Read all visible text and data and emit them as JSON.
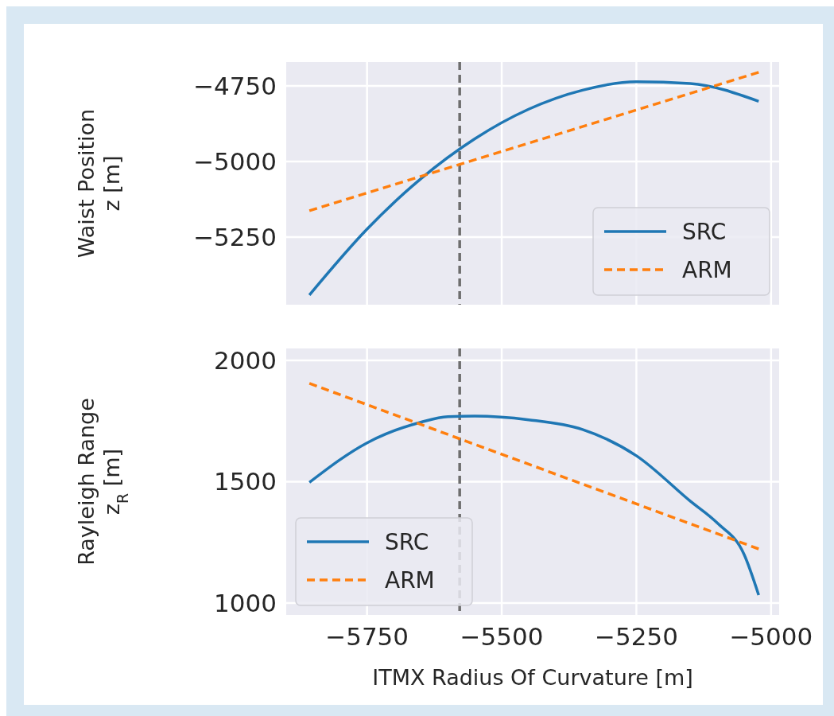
{
  "chart_data": [
    {
      "type": "line",
      "ylabel": "Waist Position\nz [m]",
      "xlim": [
        -5900,
        -4985
      ],
      "ylim": [
        -5474,
        -4671
      ],
      "yticks": [
        {
          "value": -5250,
          "label": "−5250"
        },
        {
          "value": -5000,
          "label": "−5000"
        },
        {
          "value": -4750,
          "label": "−4750"
        }
      ],
      "xticks": [
        -5750,
        -5500,
        -5250,
        -5000
      ],
      "tick_labels": "y",
      "grid": true,
      "legend": "bottom right",
      "series": [
        {
          "name": "SRC",
          "color": "#1f77b4",
          "line_style": "solid",
          "x": [
            -5857,
            -5750,
            -5650,
            -5550,
            -5450,
            -5350,
            -5250,
            -5150,
            -5023
          ],
          "values": [
            -5442,
            -5224,
            -5057,
            -4925,
            -4827,
            -4764,
            -4736,
            -4742,
            -4801
          ]
        },
        {
          "name": "ARM",
          "color": "#ff7f0e",
          "line_style": "dashed",
          "x": [
            -5857,
            -5023
          ],
          "values": [
            -5163,
            -4705
          ]
        }
      ],
      "ref_lines": [
        {
          "axis": "x",
          "value": -5578,
          "color": "#6e6e6e",
          "line_style": "dashed"
        }
      ]
    },
    {
      "type": "line",
      "ylabel": "Rayleigh Range\nz$_{R}$ [m]",
      "xlabel": "ITMX Radius Of Curvature [m]",
      "xlim": [
        -5900,
        -4985
      ],
      "ylim": [
        951,
        2049
      ],
      "yticks": [
        1000,
        1500,
        2000
      ],
      "xticks": [
        {
          "value": -5750,
          "label": "−5750"
        },
        {
          "value": -5500,
          "label": "−5500"
        },
        {
          "value": -5250,
          "label": "−5250"
        },
        {
          "value": -5000,
          "label": "−5000"
        }
      ],
      "grid": true,
      "legend": "bottom left",
      "series": [
        {
          "name": "SRC",
          "color": "#1f77b4",
          "line_style": "solid",
          "x": [
            -5857,
            -5750,
            -5650,
            -5600,
            -5550,
            -5450,
            -5350,
            -5250,
            -5150,
            -5100,
            -5050,
            -5023
          ],
          "values": [
            1497,
            1660,
            1745,
            1768,
            1770,
            1755,
            1715,
            1607,
            1420,
            1330,
            1200,
            1033
          ]
        },
        {
          "name": "ARM",
          "color": "#ff7f0e",
          "line_style": "dashed",
          "x": [
            -5857,
            -5023
          ],
          "values": [
            1905,
            1223
          ]
        }
      ],
      "ref_lines": [
        {
          "axis": "x",
          "value": -5578,
          "color": "#6e6e6e",
          "line_style": "dashed"
        }
      ]
    }
  ]
}
